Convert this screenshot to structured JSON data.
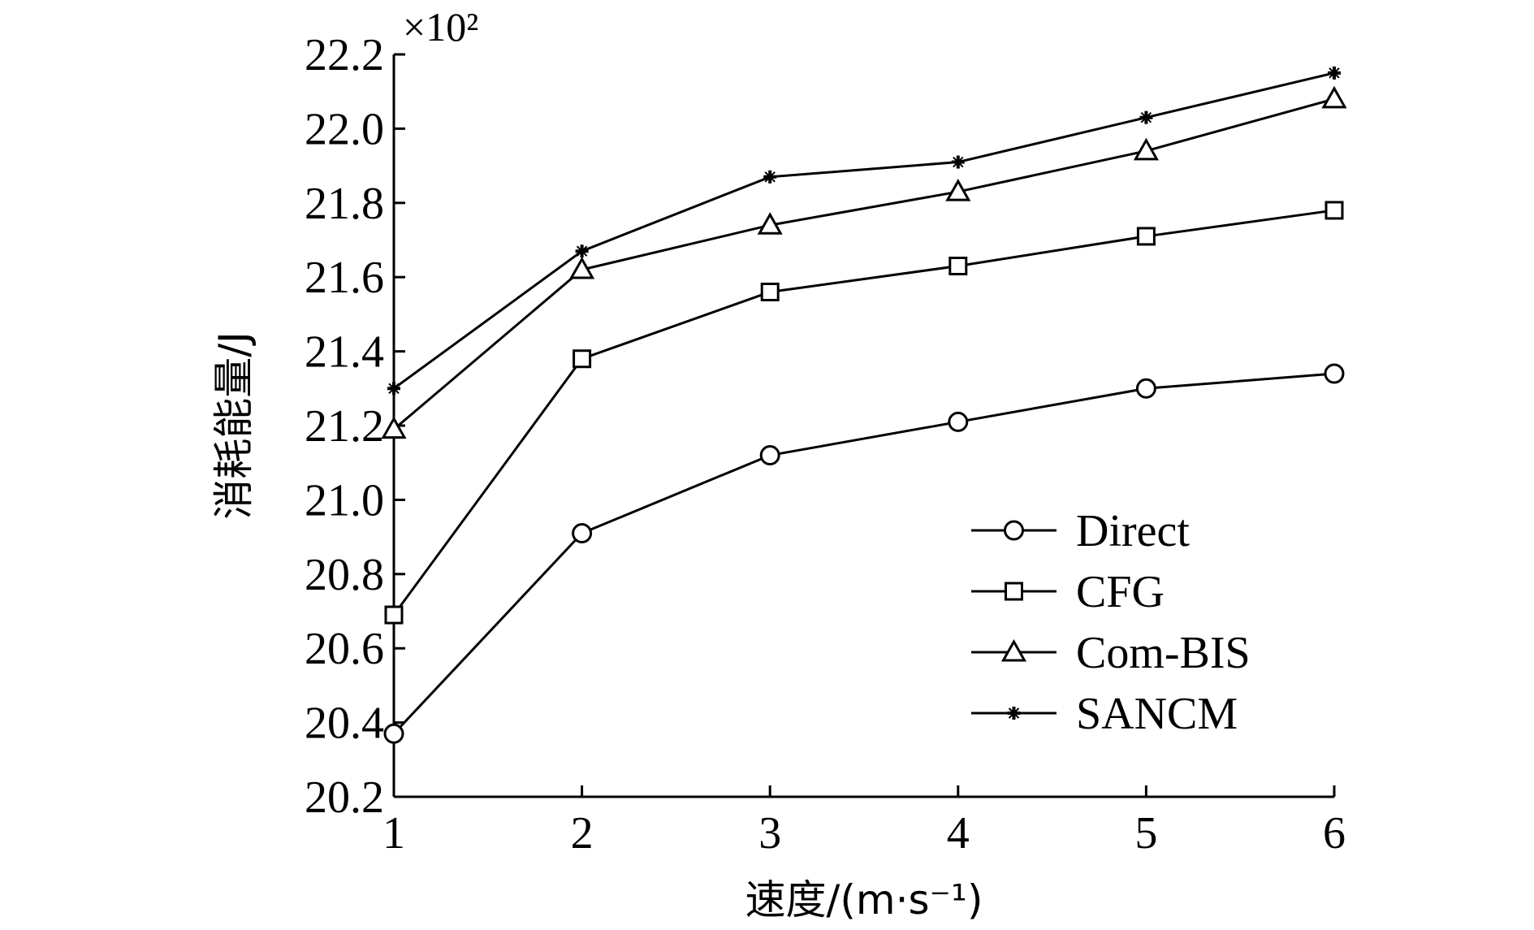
{
  "chart_data": {
    "type": "line",
    "x": [
      1,
      2,
      3,
      4,
      5,
      6
    ],
    "series": [
      {
        "name": "Direct",
        "marker": "circle",
        "values": [
          20.37,
          20.91,
          21.12,
          21.21,
          21.3,
          21.34
        ]
      },
      {
        "name": "CFG",
        "marker": "square",
        "values": [
          20.69,
          21.38,
          21.56,
          21.63,
          21.71,
          21.78
        ]
      },
      {
        "name": "Com-BIS",
        "marker": "triangle",
        "values": [
          21.19,
          21.62,
          21.74,
          21.83,
          21.94,
          22.08
        ]
      },
      {
        "name": "SANCM",
        "marker": "star",
        "values": [
          21.3,
          21.67,
          21.87,
          21.91,
          22.03,
          22.15
        ]
      }
    ],
    "xlabel": "速度/(m·s⁻¹)",
    "ylabel": "消耗能量/J",
    "y_multiplier": "×10²",
    "xlim": [
      1,
      6
    ],
    "ylim": [
      20.2,
      22.2
    ],
    "x_ticks": [
      "1",
      "2",
      "3",
      "4",
      "5",
      "6"
    ],
    "y_ticks": [
      "20.2",
      "20.4",
      "20.6",
      "20.8",
      "21.0",
      "21.2",
      "21.4",
      "21.6",
      "21.8",
      "22.0",
      "22.2"
    ],
    "grid": false,
    "legend_position": "lower-right",
    "line_color": "#000000"
  }
}
